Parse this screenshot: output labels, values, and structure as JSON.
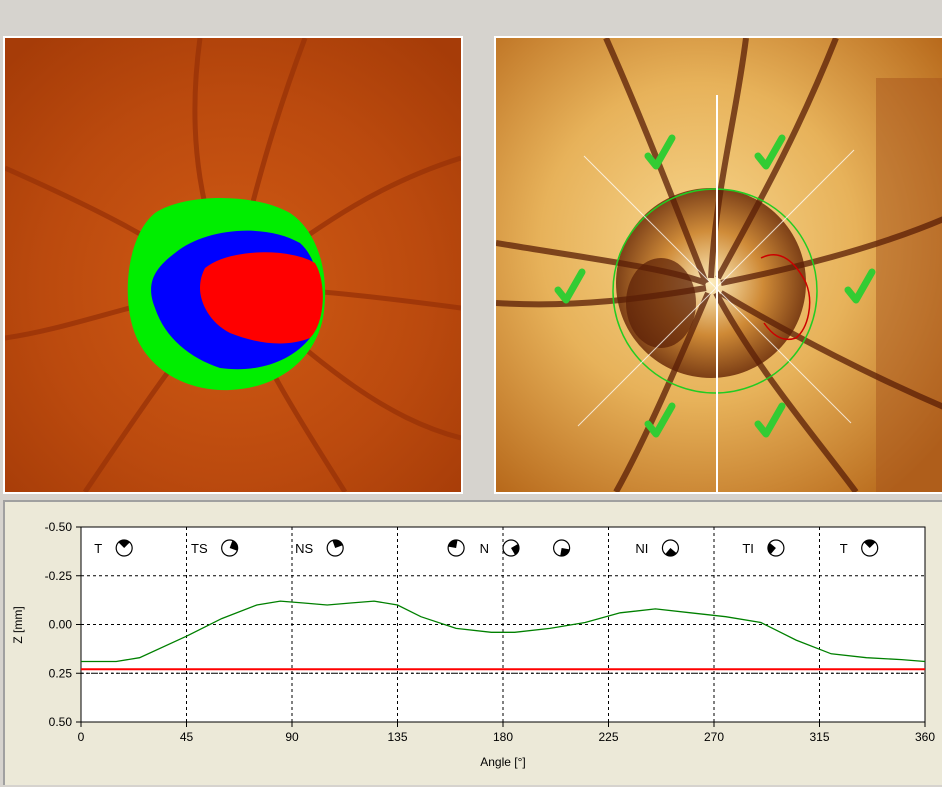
{
  "colors": {
    "window_bg": "#d6d3ce",
    "plot_bg": "#ece9d8",
    "profile_line": "#008000",
    "reference_line": "#ff0000",
    "rim_green": "#00ee00",
    "cup_blue": "#0000ff",
    "cup_red": "#ff0000",
    "check_mark": "#33cc33"
  },
  "images": {
    "left": {
      "name": "optic-disc-segmentation-image",
      "regions": [
        "rim-green",
        "slope-blue",
        "cup-red"
      ]
    },
    "right": {
      "name": "optic-disc-reflectance-image",
      "check_marks": 6
    }
  },
  "chart_data": {
    "type": "line",
    "xlabel": "Angle [°]",
    "ylabel": "Z [mm]",
    "xlim": [
      0,
      360
    ],
    "ylim": [
      -0.5,
      0.5
    ],
    "y_inverted": true,
    "x_ticks": [
      "0",
      "45",
      "90",
      "135",
      "180",
      "225",
      "270",
      "315",
      "360"
    ],
    "y_ticks": [
      "-0.50",
      "-0.25",
      "0.00",
      "0.25",
      "0.50"
    ],
    "grid": "dashed at every tick",
    "sector_dividers": [
      45,
      90,
      135,
      180,
      225,
      270,
      315
    ],
    "sector_labels": [
      {
        "label": "T",
        "angle": 15
      },
      {
        "label": "TS",
        "angle": 60
      },
      {
        "label": "NS",
        "angle": 105
      },
      {
        "label": "",
        "angle": 160
      },
      {
        "label": "N",
        "angle": 180
      },
      {
        "label": "",
        "angle": 205
      },
      {
        "label": "NI",
        "angle": 248
      },
      {
        "label": "TI",
        "angle": 293
      },
      {
        "label": "T",
        "angle": 333
      }
    ],
    "series": [
      {
        "name": "",
        "color": "#008000",
        "x": [
          0,
          15,
          25,
          45,
          60,
          75,
          85,
          95,
          105,
          115,
          125,
          135,
          145,
          160,
          175,
          185,
          200,
          215,
          230,
          245,
          260,
          275,
          290,
          305,
          320,
          335,
          350,
          360
        ],
        "y": [
          0.19,
          0.19,
          0.17,
          0.06,
          -0.03,
          -0.1,
          -0.12,
          -0.11,
          -0.1,
          -0.11,
          -0.12,
          -0.1,
          -0.04,
          0.02,
          0.04,
          0.04,
          0.02,
          -0.01,
          -0.06,
          -0.08,
          -0.06,
          -0.04,
          -0.01,
          0.08,
          0.15,
          0.17,
          0.18,
          0.19
        ]
      },
      {
        "name": "",
        "color": "#ff0000",
        "x": [
          0,
          360
        ],
        "y": [
          0.23,
          0.23
        ]
      }
    ],
    "reference_dotted_y": 0.25
  }
}
